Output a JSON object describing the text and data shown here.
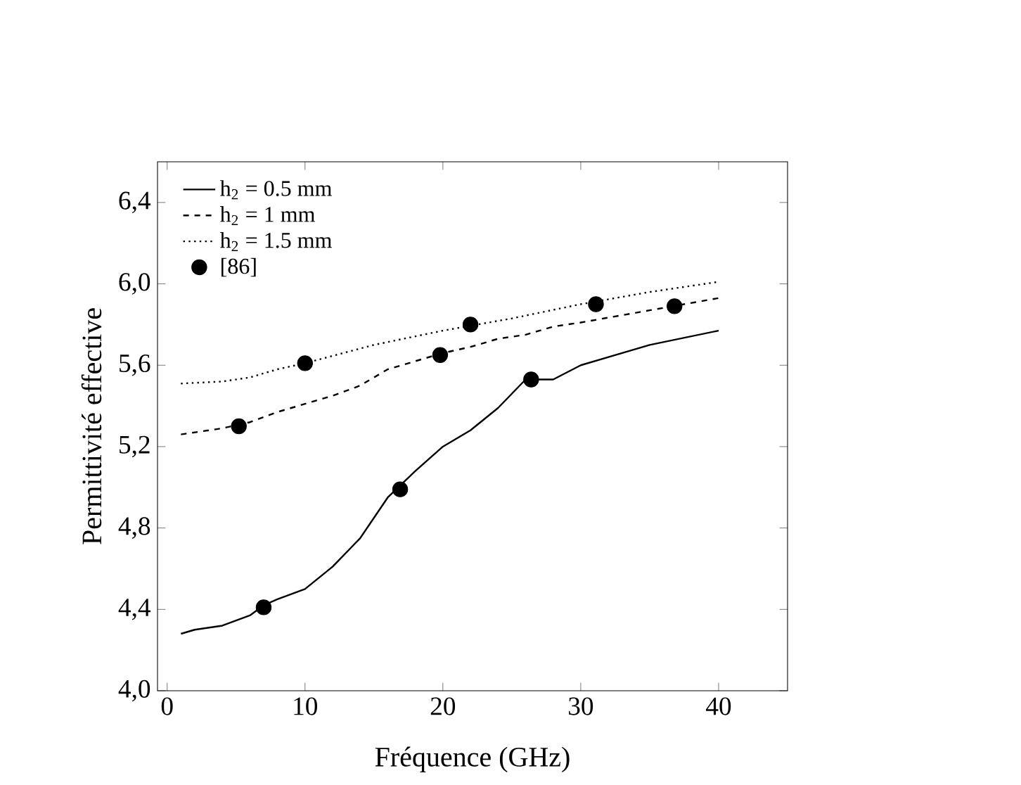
{
  "chart_data": {
    "type": "line",
    "xlabel": "Fréquence (GHz)",
    "ylabel": "Permittivité effective",
    "xlim": [
      -0.7,
      45
    ],
    "ylim": [
      4.0,
      6.6
    ],
    "xticks": [
      0,
      10,
      20,
      30,
      40
    ],
    "yticks": [
      {
        "value": 4.0,
        "label": "4,0"
      },
      {
        "value": 4.4,
        "label": "4,4"
      },
      {
        "value": 4.8,
        "label": "4,8"
      },
      {
        "value": 5.2,
        "label": "5,2"
      },
      {
        "value": 5.6,
        "label": "5,6"
      },
      {
        "value": 6.0,
        "label": "6,0"
      },
      {
        "value": 6.4,
        "label": "6,4"
      }
    ],
    "legend": "top left",
    "grid": false,
    "series": [
      {
        "name": "h$_{2}$ = 0.5 mm",
        "color": "#000000",
        "line_style": "solid",
        "marker": "none",
        "x": [
          1,
          2,
          4,
          6,
          7,
          8,
          10,
          12,
          14,
          16,
          18,
          20,
          22,
          24,
          26,
          28,
          30,
          35,
          40
        ],
        "values": [
          4.28,
          4.3,
          4.32,
          4.37,
          4.42,
          4.45,
          4.5,
          4.61,
          4.75,
          4.95,
          5.08,
          5.2,
          5.28,
          5.39,
          5.53,
          5.53,
          5.6,
          5.7,
          5.77
        ]
      },
      {
        "name": "h$_{2}$ = 1 mm",
        "color": "#000000",
        "line_style": "dashed",
        "marker": "none",
        "x": [
          1,
          4,
          6,
          8,
          10,
          12,
          14,
          16,
          18,
          20,
          22,
          24,
          26,
          28,
          30,
          35,
          40
        ],
        "values": [
          5.26,
          5.29,
          5.32,
          5.37,
          5.41,
          5.45,
          5.5,
          5.58,
          5.62,
          5.66,
          5.69,
          5.73,
          5.75,
          5.79,
          5.81,
          5.87,
          5.93
        ]
      },
      {
        "name": "h$_{2}$ = 1.5 mm",
        "color": "#000000",
        "line_style": "dotted",
        "marker": "none",
        "x": [
          1,
          4,
          6,
          8,
          10,
          15,
          20,
          25,
          30,
          35,
          40
        ],
        "values": [
          5.51,
          5.52,
          5.54,
          5.58,
          5.61,
          5.7,
          5.77,
          5.83,
          5.9,
          5.96,
          6.01
        ]
      },
      {
        "name": "[86]",
        "type": "scatter",
        "color": "#000000",
        "marker": "circle",
        "x": [
          7.0,
          5.2,
          10.0,
          16.9,
          19.8,
          22.0,
          26.4,
          31.1,
          36.8
        ],
        "values": [
          4.41,
          5.3,
          5.61,
          4.99,
          5.65,
          5.8,
          5.53,
          5.9,
          5.89
        ]
      }
    ]
  }
}
